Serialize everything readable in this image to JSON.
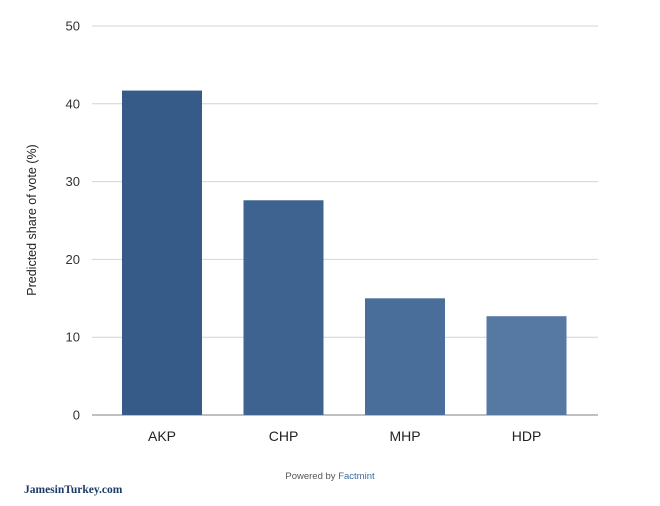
{
  "chart_data": {
    "type": "bar",
    "title": "",
    "xlabel": "",
    "ylabel": "Predicted share of vote (%)",
    "categories": [
      "AKP",
      "CHP",
      "MHP",
      "HDP"
    ],
    "values": [
      41.7,
      27.6,
      15.0,
      12.7
    ],
    "colors": [
      "#375b88",
      "#3e6391",
      "#4a6e9a",
      "#5579a3"
    ],
    "ylim": [
      0,
      50
    ],
    "yticks": [
      0,
      10,
      20,
      30,
      40,
      50
    ],
    "grid": true,
    "legend": "none"
  },
  "footer": {
    "powered_by": "Powered by",
    "brand": "Factmint"
  },
  "watermark": "JamesinTurkey.com"
}
